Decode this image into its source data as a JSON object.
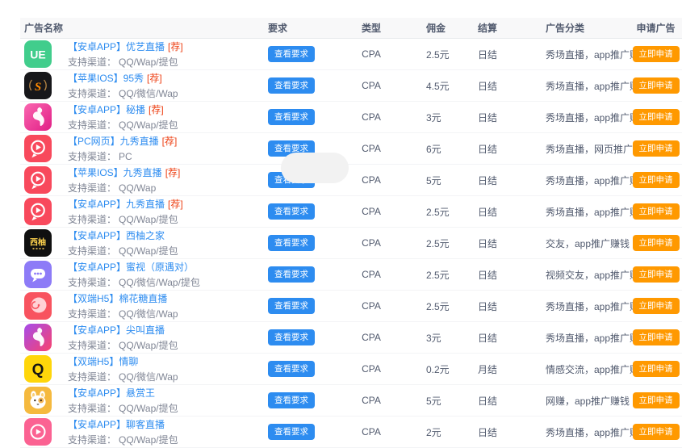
{
  "header": {
    "columns": [
      {
        "label": "广告名称"
      },
      {
        "label": "要求"
      },
      {
        "label": "类型"
      },
      {
        "label": "佣金"
      },
      {
        "label": "结算"
      },
      {
        "label": "广告分类"
      },
      {
        "label": "申请广告"
      }
    ]
  },
  "labels": {
    "view_requirements": "查看要求",
    "apply_now": "立即申请",
    "channel_prefix": "支持渠道："
  },
  "colors": {
    "link": "#2d8cf0",
    "recommend_tag": "#ed4014",
    "view_button": "#2d8cf0",
    "apply_button": "#ff9900",
    "header_bg": "#f8f8f9",
    "muted_text": "#808695",
    "body_text": "#515a6e"
  },
  "rows": [
    {
      "name": "【安卓APP】优艺直播",
      "rec_tag": "[荐]",
      "channels": "QQ/Wap/提包",
      "type": "CPA",
      "commission": "2.5元",
      "settlement": "日结",
      "category": "秀场直播，app推广赚钱",
      "icon": {
        "kind": "ue-logo",
        "bg": "#41cd8c",
        "fg": "#ffffff",
        "text": "UE"
      }
    },
    {
      "name": "【苹果IOS】95秀",
      "rec_tag": "[荐]",
      "channels": "QQ/微信/Wap",
      "type": "CPA",
      "commission": "4.5元",
      "settlement": "日结",
      "category": "秀场直播，app推广赚钱",
      "icon": {
        "kind": "swirl-s",
        "bg": "#17171a",
        "fg": "#ff8a00",
        "text": "S"
      }
    },
    {
      "name": "【安卓APP】秘播",
      "rec_tag": "[荐]",
      "channels": "QQ/Wap/提包",
      "type": "CPA",
      "commission": "3元",
      "settlement": "日结",
      "category": "秀场直播，app推广赚钱",
      "icon": {
        "kind": "girl-silhouette",
        "bg": "#fa66b0",
        "bg2": "#e11f86"
      }
    },
    {
      "name": "【PC网页】九秀直播",
      "rec_tag": "[荐]",
      "channels": "PC",
      "type": "CPA",
      "commission": "6元",
      "settlement": "日结",
      "category": "秀场直播，网页推广赚钱",
      "icon": {
        "kind": "play-chat-bubble",
        "bg": "#f8495c"
      }
    },
    {
      "name": "【苹果IOS】九秀直播",
      "rec_tag": "[荐]",
      "channels": "QQ/Wap",
      "type": "CPA",
      "commission": "5元",
      "settlement": "日结",
      "category": "秀场直播，app推广赚钱",
      "icon": {
        "kind": "play-chat-bubble",
        "bg": "#f8495c"
      }
    },
    {
      "name": "【安卓APP】九秀直播",
      "rec_tag": "[荐]",
      "channels": "QQ/Wap/提包",
      "type": "CPA",
      "commission": "2.5元",
      "settlement": "日结",
      "category": "秀场直播，app推广赚钱",
      "icon": {
        "kind": "play-chat-bubble",
        "bg": "#f8495c"
      }
    },
    {
      "name": "【安卓APP】西柚之家",
      "rec_tag": "",
      "channels": "QQ/Wap/提包",
      "type": "CPA",
      "commission": "2.5元",
      "settlement": "日结",
      "category": "交友，app推广赚钱",
      "icon": {
        "kind": "xiyou-logo",
        "bg": "#101010",
        "fg": "#ffd34d",
        "text": "西柚"
      }
    },
    {
      "name": "【安卓APP】蜜视（原遇对）",
      "rec_tag": "",
      "channels": "QQ/微信/Wap/提包",
      "type": "CPA",
      "commission": "2.5元",
      "settlement": "日结",
      "category": "视频交友，app推广赚钱",
      "icon": {
        "kind": "chat-dots",
        "bg": "#8d7bf7"
      }
    },
    {
      "name": "【双端H5】棉花糖直播",
      "rec_tag": "",
      "channels": "QQ/微信/Wap",
      "type": "CPA",
      "commission": "2.5元",
      "settlement": "日结",
      "category": "秀场直播，app推广赚钱",
      "icon": {
        "kind": "candy-face",
        "bg": "#f8535f"
      }
    },
    {
      "name": "【安卓APP】尖叫直播",
      "rec_tag": "",
      "channels": "QQ/Wap/提包",
      "type": "CPA",
      "commission": "3元",
      "settlement": "日结",
      "category": "秀场直播，app推广赚钱",
      "icon": {
        "kind": "girl-silhouette-2",
        "bg": "#a64ceb",
        "bg2": "#f8426e"
      }
    },
    {
      "name": "【双端H5】情聊",
      "rec_tag": "",
      "channels": "QQ/微信/Wap",
      "type": "CPA",
      "commission": "0.2元",
      "settlement": "月结",
      "category": "情感交流，app推广赚钱",
      "icon": {
        "kind": "q-letter",
        "bg": "#ffd60a",
        "fg": "#151515",
        "text": "Q"
      }
    },
    {
      "name": "【安卓APP】悬赏王",
      "rec_tag": "",
      "channels": "QQ/Wap/提包",
      "type": "CPA",
      "commission": "5元",
      "settlement": "日结",
      "category": "网赚，app推广赚钱",
      "icon": {
        "kind": "hamster-face",
        "bg": "#f5b93e"
      }
    },
    {
      "name": "【安卓APP】聊客直播",
      "rec_tag": "",
      "channels": "QQ/Wap/提包",
      "type": "CPA",
      "commission": "2元",
      "settlement": "日结",
      "category": "秀场直播，app推广赚钱",
      "icon": {
        "kind": "play-circle",
        "bg": "#fb6292"
      }
    }
  ]
}
